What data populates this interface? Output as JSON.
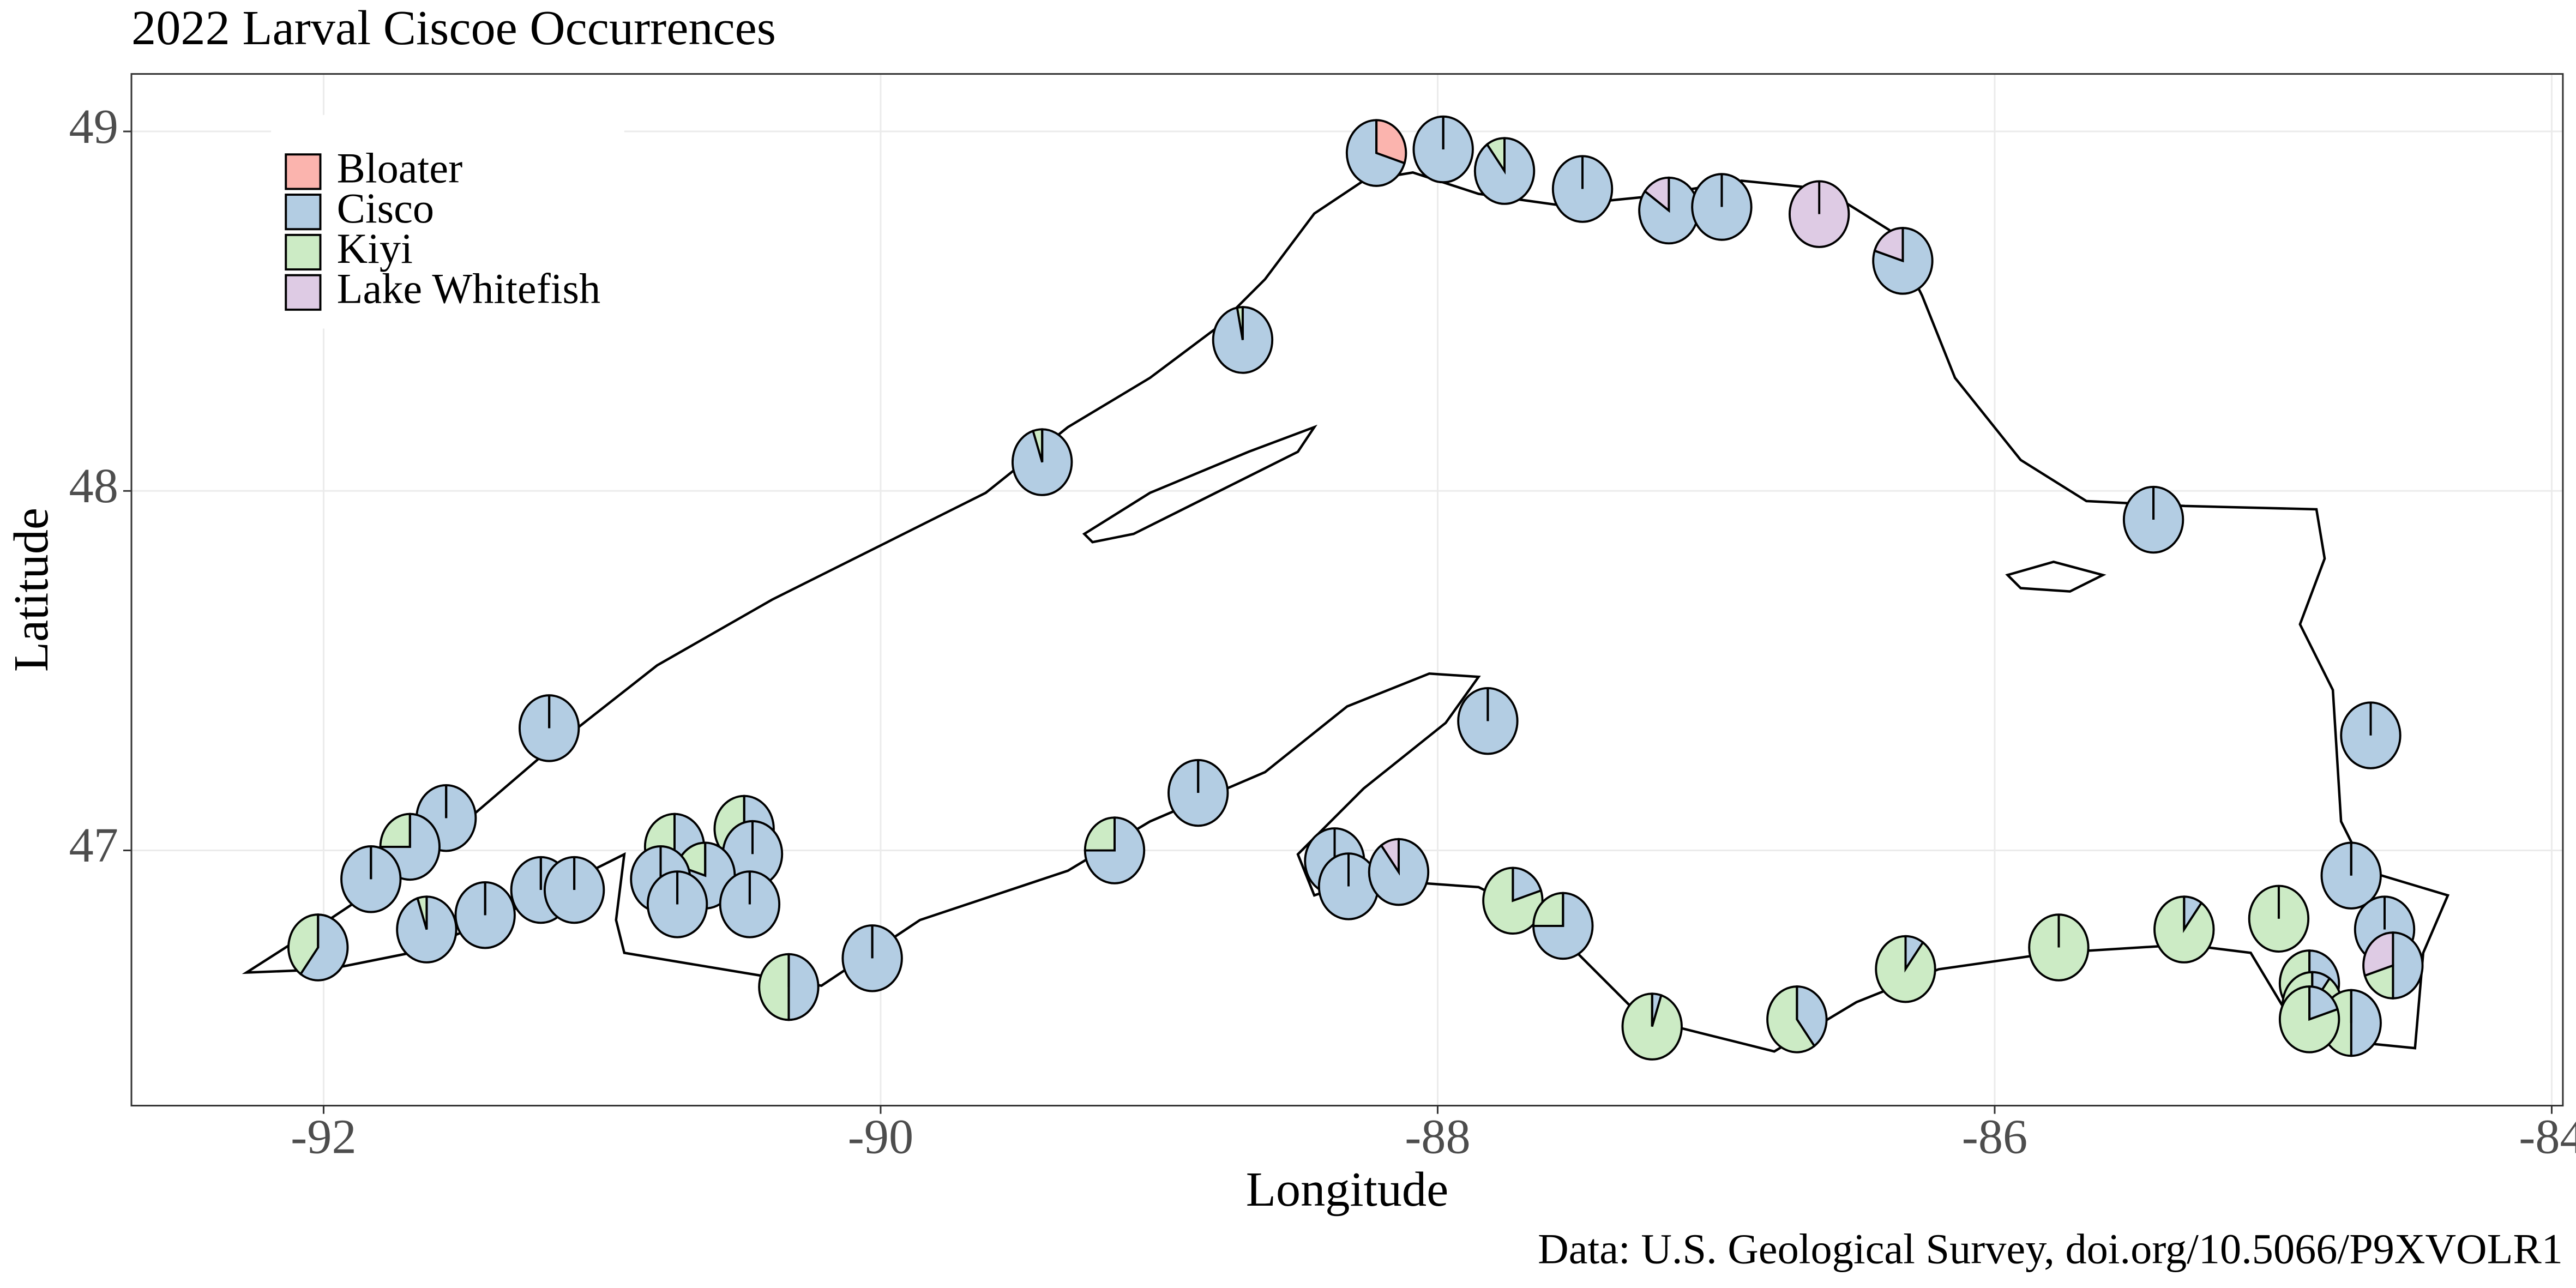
{
  "chart_data": {
    "type": "scatter-pie",
    "title": "2022 Larval Ciscoe Occurrences",
    "x_label": "Longitude",
    "y_label": "Latitude",
    "caption": "Data: U.S. Geological Survey, doi.org/10.5066/P9XVOLR1",
    "xlim": [
      -92.69,
      -83.96
    ],
    "ylim": [
      46.29,
      49.16
    ],
    "xticks": [
      -92,
      -90,
      -88,
      -86,
      -84
    ],
    "yticks": [
      47,
      48,
      49
    ],
    "grid": true,
    "legend_position": "top-left",
    "x": [
      -88.22,
      -87.98,
      -87.76,
      -87.48,
      -87.17,
      -86.98,
      -86.63,
      -86.33,
      -88.7,
      -89.42,
      -85.43,
      -91.19,
      -87.82,
      -84.65,
      -88.86,
      -91.56,
      -91.69,
      -91.83,
      -89.16,
      -90.74,
      -90.49,
      -90.46,
      -90.63,
      -90.79,
      -90.73,
      -90.47,
      -91.22,
      -91.1,
      -91.42,
      -91.63,
      -92.02,
      -90.33,
      -90.03,
      -88.37,
      -88.32,
      -88.14,
      -87.73,
      -87.55,
      -87.23,
      -86.71,
      -86.32,
      -85.77,
      -85.32,
      -84.98,
      -84.72,
      -84.6,
      -84.57,
      -84.87,
      -84.86,
      -84.72,
      -84.87
    ],
    "y": [
      48.94,
      48.95,
      48.89,
      48.84,
      48.78,
      48.79,
      48.77,
      48.64,
      48.42,
      48.08,
      47.92,
      47.34,
      47.36,
      47.32,
      47.16,
      47.09,
      47.01,
      46.92,
      47.0,
      47.01,
      47.06,
      46.99,
      46.93,
      46.92,
      46.85,
      46.85,
      46.89,
      46.89,
      46.82,
      46.78,
      46.73,
      46.62,
      46.7,
      46.97,
      46.9,
      46.94,
      46.86,
      46.79,
      46.51,
      46.53,
      46.67,
      46.73,
      46.78,
      46.81,
      46.93,
      46.78,
      46.68,
      46.63,
      46.57,
      46.52,
      46.53
    ],
    "series": [
      {
        "name": "Bloater",
        "color": "#fbb4ae",
        "values": [
          0.3,
          0,
          0,
          0,
          0,
          0,
          0,
          0,
          0,
          0,
          0,
          0,
          0,
          0,
          0,
          0,
          0,
          0,
          0,
          0,
          0,
          0,
          0,
          0,
          0,
          0,
          0,
          0,
          0,
          0,
          0,
          0,
          0,
          0,
          0,
          0,
          0,
          0,
          0,
          0,
          0,
          0,
          0,
          0,
          0,
          0,
          0,
          0,
          0,
          0,
          0
        ]
      },
      {
        "name": "Cisco",
        "color": "#b3cde3",
        "values": [
          0.7,
          1,
          0.9,
          1,
          0.85,
          1,
          0,
          0.8,
          0.97,
          0.95,
          1,
          1,
          1,
          1,
          1,
          1,
          0.75,
          1,
          0.75,
          0.5,
          0.5,
          1,
          0.8,
          1,
          1,
          1,
          1,
          1,
          1,
          0.95,
          0.6,
          0.5,
          1,
          1,
          1,
          0.9,
          0.2,
          0.75,
          0.05,
          0.4,
          0.1,
          0,
          0.1,
          0,
          1,
          1,
          0.5,
          0.6,
          0.1,
          0.5,
          0.2
        ]
      },
      {
        "name": "Kiyi",
        "color": "#ccebc5",
        "values": [
          0,
          0,
          0.1,
          0,
          0,
          0,
          0,
          0,
          0.03,
          0.05,
          0,
          0,
          0,
          0,
          0,
          0,
          0.25,
          0,
          0.25,
          0.5,
          0.5,
          0,
          0.2,
          0,
          0,
          0,
          0,
          0,
          0,
          0.05,
          0.4,
          0.5,
          0,
          0,
          0,
          0,
          0.8,
          0.25,
          0.95,
          0.6,
          0.9,
          1,
          0.9,
          1,
          0,
          0,
          0.2,
          0.4,
          0.9,
          0.5,
          0.8
        ]
      },
      {
        "name": "Lake Whitefish",
        "color": "#decbe4",
        "values": [
          0,
          0,
          0,
          0,
          0.15,
          0,
          1,
          0.2,
          0,
          0,
          0,
          0,
          0,
          0,
          0,
          0,
          0,
          0,
          0,
          0,
          0,
          0,
          0,
          0,
          0,
          0,
          0,
          0,
          0,
          0,
          0,
          0,
          0,
          0,
          0,
          0.1,
          0,
          0,
          0,
          0,
          0,
          0,
          0,
          0,
          0,
          0,
          0.3,
          0,
          0,
          0,
          0
        ]
      }
    ]
  }
}
